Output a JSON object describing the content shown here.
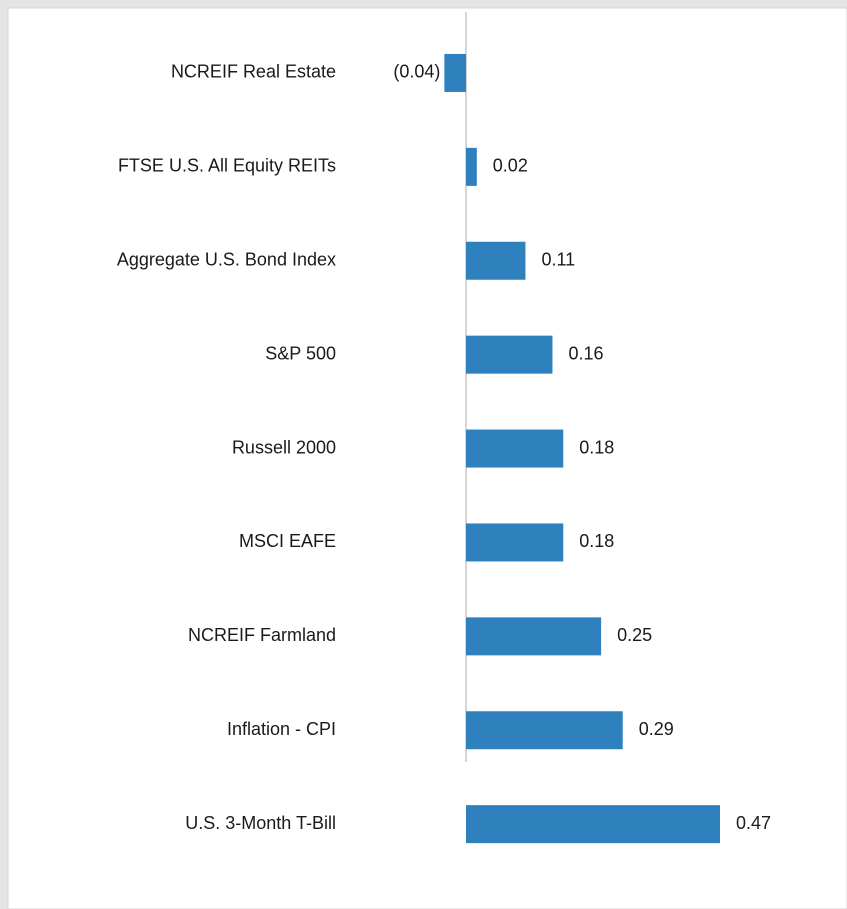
{
  "chart_data": {
    "type": "bar",
    "orientation": "horizontal",
    "categories": [
      "NCREIF Real Estate",
      "FTSE U.S. All Equity REITs",
      "Aggregate U.S. Bond Index",
      "S&P 500",
      "Russell 2000",
      "MSCI EAFE",
      "NCREIF Farmland",
      "Inflation - CPI",
      "U.S. 3-Month T-Bill"
    ],
    "values": [
      -0.04,
      0.02,
      0.11,
      0.16,
      0.18,
      0.18,
      0.25,
      0.29,
      0.47
    ],
    "value_labels": [
      "(0.04)",
      "0.02",
      "0.11",
      "0.16",
      "0.18",
      "0.18",
      "0.25",
      "0.29",
      "0.47"
    ],
    "color": "#2e81bd"
  }
}
